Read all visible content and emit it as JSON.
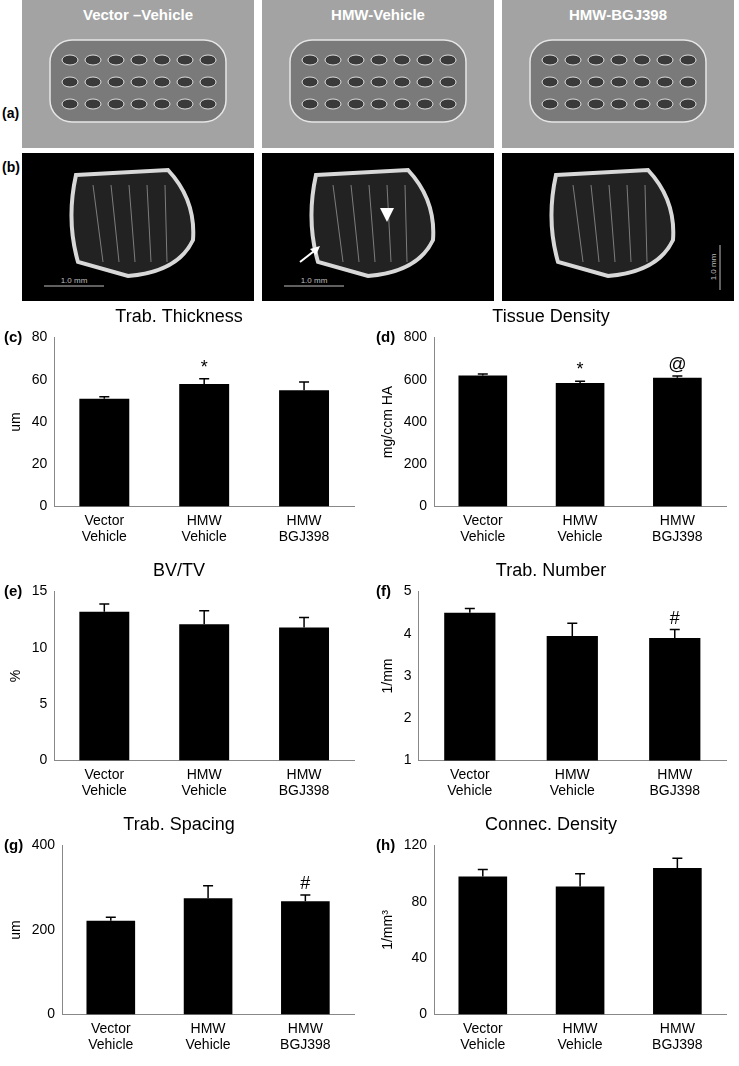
{
  "images": {
    "row_labels": [
      "(a)",
      "(b)"
    ],
    "column_titles": [
      "Vector –Vehicle",
      "HMW-Vehicle",
      "HMW-BGJ398"
    ],
    "scale_bar": "1.0 mm"
  },
  "chart_data": [
    {
      "type": "bar",
      "panel_label": "(c)",
      "title": "Trab. Thickness",
      "y_label": "um",
      "categories": [
        "Vector Vehicle",
        "HMW Vehicle",
        "HMW BGJ398"
      ],
      "values": [
        51,
        58,
        55
      ],
      "errors": [
        1,
        2.5,
        4
      ],
      "color": "#000000",
      "ylim": [
        0,
        80
      ],
      "yticks": [
        0,
        20,
        40,
        60,
        80
      ],
      "grid": false,
      "annotations": [
        {
          "category": "HMW Vehicle",
          "text": "*"
        }
      ]
    },
    {
      "type": "bar",
      "panel_label": "(d)",
      "title": "Tissue Density",
      "y_label": "mg/ccm HA",
      "categories": [
        "Vector Vehicle",
        "HMW Vehicle",
        "HMW BGJ398"
      ],
      "values": [
        620,
        585,
        610
      ],
      "errors": [
        8,
        8,
        8
      ],
      "color": "#000000",
      "ylim": [
        0,
        800
      ],
      "yticks": [
        0,
        200,
        400,
        600,
        800
      ],
      "grid": false,
      "annotations": [
        {
          "category": "HMW Vehicle",
          "text": "*"
        },
        {
          "category": "HMW BGJ398",
          "text": "@"
        }
      ]
    },
    {
      "type": "bar",
      "panel_label": "(e)",
      "title": "BV/TV",
      "y_label": "%",
      "categories": [
        "Vector Vehicle",
        "HMW Vehicle",
        "HMW BGJ398"
      ],
      "values": [
        13.2,
        12.1,
        11.8
      ],
      "errors": [
        0.7,
        1.2,
        0.9
      ],
      "color": "#000000",
      "ylim": [
        0,
        15
      ],
      "yticks": [
        0,
        5,
        10,
        15
      ],
      "grid": false,
      "annotations": []
    },
    {
      "type": "bar",
      "panel_label": "(f)",
      "title": "Trab. Number",
      "y_label": "1/mm",
      "categories": [
        "Vector Vehicle",
        "HMW Vehicle",
        "HMW BGJ398"
      ],
      "values": [
        4.5,
        3.95,
        3.9
      ],
      "errors": [
        0.1,
        0.3,
        0.2
      ],
      "color": "#000000",
      "ylim": [
        1,
        5
      ],
      "yticks": [
        1,
        2,
        3,
        4,
        5
      ],
      "grid": false,
      "annotations": [
        {
          "category": "HMW BGJ398",
          "text": "#"
        }
      ]
    },
    {
      "type": "bar",
      "panel_label": "(g)",
      "title": "Trab. Spacing",
      "y_label": "um",
      "categories": [
        "Vector Vehicle",
        "HMW Vehicle",
        "HMW BGJ398"
      ],
      "values": [
        222,
        275,
        268
      ],
      "errors": [
        8,
        30,
        15
      ],
      "color": "#000000",
      "ylim": [
        0,
        400
      ],
      "yticks": [
        0,
        200,
        400
      ],
      "grid": false,
      "annotations": [
        {
          "category": "HMW BGJ398",
          "text": "#"
        }
      ]
    },
    {
      "type": "bar",
      "panel_label": "(h)",
      "title": "Connec. Density",
      "y_label": "1/mm³",
      "categories": [
        "Vector Vehicle",
        "HMW Vehicle",
        "HMW BGJ398"
      ],
      "values": [
        98,
        91,
        104
      ],
      "errors": [
        5,
        9,
        7
      ],
      "color": "#000000",
      "ylim": [
        0,
        120
      ],
      "yticks": [
        0,
        40,
        80,
        120
      ],
      "grid": false,
      "annotations": []
    }
  ]
}
